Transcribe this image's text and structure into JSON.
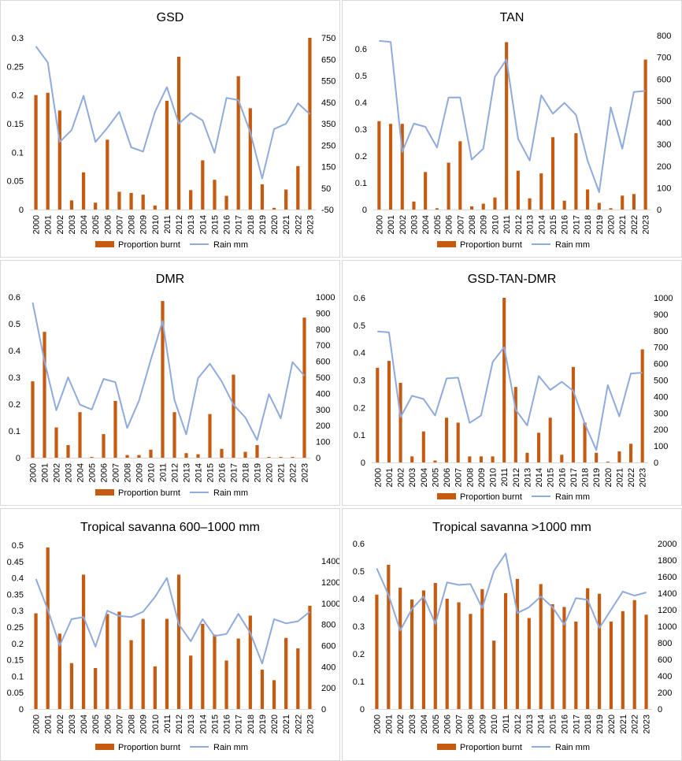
{
  "colors": {
    "bar": "#c55a11",
    "line": "#8faadc"
  },
  "legend": {
    "bar_label": "Proportion burnt",
    "line_label": "Rain mm"
  },
  "chart_data": [
    {
      "type": "bar+line",
      "title": "GSD",
      "categories": [
        "2000",
        "2001",
        "2002",
        "2003",
        "2004",
        "2005",
        "2006",
        "2007",
        "2008",
        "2009",
        "2010",
        "2011",
        "2012",
        "2013",
        "2014",
        "2015",
        "2016",
        "2017",
        "2018",
        "2019",
        "2020",
        "2021",
        "2022",
        "2023"
      ],
      "series": [
        {
          "name": "Proportion burnt",
          "axis": "left",
          "values": [
            0.2,
            0.204,
            0.173,
            0.016,
            0.065,
            0.012,
            0.122,
            0.031,
            0.029,
            0.026,
            0.007,
            0.19,
            0.267,
            0.034,
            0.086,
            0.052,
            0.024,
            0.233,
            0.177,
            0.044,
            0.003,
            0.035,
            0.076,
            0.3
          ]
        },
        {
          "name": "Rain mm",
          "axis": "right",
          "values": [
            710,
            635,
            265,
            320,
            480,
            265,
            330,
            405,
            240,
            220,
            405,
            520,
            350,
            400,
            365,
            215,
            470,
            460,
            310,
            95,
            325,
            350,
            445,
            395
          ]
        }
      ],
      "ylim_left": [
        0,
        0.3
      ],
      "yticks_left": [
        "0",
        "0.05",
        "0.1",
        "0.15",
        "0.2",
        "0.25",
        "0.3"
      ],
      "ylim_right": [
        -50,
        750
      ],
      "yticks_right": [
        "-50",
        "50",
        "150",
        "250",
        "350",
        "450",
        "550",
        "650",
        "750"
      ]
    },
    {
      "type": "bar+line",
      "title": "TAN",
      "categories": [
        "2000",
        "2001",
        "2002",
        "2003",
        "2004",
        "2005",
        "2006",
        "2007",
        "2008",
        "2009",
        "2010",
        "2011",
        "2012",
        "2013",
        "2014",
        "2015",
        "2016",
        "2017",
        "2018",
        "2019",
        "2020",
        "2021",
        "2022",
        "2023"
      ],
      "series": [
        {
          "name": "Proportion burnt",
          "axis": "left",
          "values": [
            0.33,
            0.32,
            0.32,
            0.03,
            0.14,
            0.005,
            0.175,
            0.255,
            0.012,
            0.022,
            0.045,
            0.625,
            0.145,
            0.042,
            0.135,
            0.27,
            0.033,
            0.285,
            0.075,
            0.025,
            0.005,
            0.052,
            0.058,
            0.56
          ]
        },
        {
          "name": "Rain mm",
          "axis": "right",
          "values": [
            775,
            770,
            265,
            395,
            380,
            285,
            515,
            515,
            230,
            280,
            610,
            690,
            325,
            225,
            525,
            440,
            490,
            435,
            225,
            80,
            470,
            280,
            540,
            545
          ]
        }
      ],
      "ylim_left": [
        0,
        0.65
      ],
      "yticks_left": [
        "0",
        "0.1",
        "0.2",
        "0.3",
        "0.4",
        "0.5",
        "0.6"
      ],
      "ylim_right": [
        0,
        800
      ],
      "yticks_right": [
        "0",
        "100",
        "200",
        "300",
        "400",
        "500",
        "600",
        "700",
        "800"
      ]
    },
    {
      "type": "bar+line",
      "title": "DMR",
      "categories": [
        "2000",
        "2001",
        "2002",
        "2003",
        "2004",
        "2005",
        "2006",
        "2007",
        "2008",
        "2009",
        "2010",
        "2011",
        "2012",
        "2013",
        "2014",
        "2015",
        "2016",
        "2017",
        "2018",
        "2019",
        "2020",
        "2021",
        "2022",
        "2023"
      ],
      "series": [
        {
          "name": "Proportion burnt",
          "axis": "left",
          "values": [
            0.285,
            0.47,
            0.113,
            0.047,
            0.17,
            0.003,
            0.088,
            0.212,
            0.01,
            0.01,
            0.03,
            0.585,
            0.17,
            0.017,
            0.013,
            0.163,
            0.033,
            0.31,
            0.022,
            0.047,
            0.003,
            0.003,
            0.003,
            0.523
          ]
        },
        {
          "name": "Rain mm",
          "axis": "right",
          "values": [
            965,
            600,
            295,
            500,
            330,
            300,
            490,
            470,
            185,
            355,
            610,
            850,
            360,
            145,
            495,
            585,
            475,
            330,
            250,
            110,
            395,
            245,
            595,
            510
          ]
        }
      ],
      "ylim_left": [
        0,
        0.6
      ],
      "yticks_left": [
        "0",
        "0.1",
        "0.2",
        "0.3",
        "0.4",
        "0.5",
        "0.6"
      ],
      "ylim_right": [
        0,
        1000
      ],
      "yticks_right": [
        "0",
        "100",
        "200",
        "300",
        "400",
        "500",
        "600",
        "700",
        "800",
        "900",
        "1000"
      ]
    },
    {
      "type": "bar+line",
      "title": "GSD-TAN-DMR",
      "categories": [
        "2000",
        "2001",
        "2002",
        "2003",
        "2004",
        "2005",
        "2006",
        "2007",
        "2008",
        "2009",
        "2010",
        "2011",
        "2012",
        "2013",
        "2014",
        "2015",
        "2016",
        "2017",
        "2018",
        "2019",
        "2020",
        "2021",
        "2022",
        "2023"
      ],
      "series": [
        {
          "name": "Proportion burnt",
          "axis": "left",
          "values": [
            0.345,
            0.37,
            0.29,
            0.022,
            0.113,
            0.007,
            0.163,
            0.145,
            0.022,
            0.022,
            0.022,
            0.6,
            0.275,
            0.035,
            0.108,
            0.163,
            0.028,
            0.348,
            0.145,
            0.035,
            0.003,
            0.04,
            0.068,
            0.412
          ]
        },
        {
          "name": "Rain mm",
          "axis": "right",
          "values": [
            795,
            790,
            275,
            405,
            385,
            285,
            510,
            515,
            240,
            285,
            610,
            700,
            320,
            225,
            525,
            440,
            490,
            435,
            235,
            75,
            470,
            280,
            540,
            545
          ]
        }
      ],
      "ylim_left": [
        0,
        0.6
      ],
      "yticks_left": [
        "0",
        "0.1",
        "0.2",
        "0.3",
        "0.4",
        "0.5",
        "0.6"
      ],
      "ylim_right": [
        0,
        1000
      ],
      "yticks_right": [
        "0",
        "100",
        "200",
        "300",
        "400",
        "500",
        "600",
        "700",
        "800",
        "900",
        "1000"
      ]
    },
    {
      "type": "bar+line",
      "title": "Tropical savanna 600–1000 mm",
      "categories": [
        "2000",
        "2001",
        "2002",
        "2003",
        "2004",
        "2005",
        "2006",
        "2007",
        "2008",
        "2009",
        "2010",
        "2011",
        "2012",
        "2013",
        "2014",
        "2015",
        "2016",
        "2017",
        "2018",
        "2019",
        "2020",
        "2021",
        "2022",
        "2023"
      ],
      "series": [
        {
          "name": "Proportion burnt",
          "axis": "left",
          "values": [
            0.292,
            0.493,
            0.23,
            0.14,
            0.41,
            0.125,
            0.29,
            0.297,
            0.21,
            0.275,
            0.13,
            0.275,
            0.41,
            0.163,
            0.26,
            0.227,
            0.148,
            0.215,
            0.285,
            0.12,
            0.088,
            0.217,
            0.185,
            0.315
          ]
        },
        {
          "name": "Rain mm",
          "axis": "right",
          "values": [
            1230,
            940,
            600,
            850,
            870,
            590,
            930,
            880,
            870,
            920,
            1060,
            1240,
            800,
            640,
            850,
            690,
            710,
            900,
            720,
            430,
            850,
            810,
            830,
            920
          ]
        }
      ],
      "ylim_left": [
        0,
        0.5
      ],
      "yticks_left": [
        "0",
        "0.05",
        "0.1",
        "0.15",
        "0.2",
        "0.25",
        "0.3",
        "0.35",
        "0.4",
        "0.45",
        "0.5"
      ],
      "ylim_right": [
        0,
        1550
      ],
      "yticks_right": [
        "0",
        "200",
        "400",
        "600",
        "800",
        "1000",
        "1200",
        "1400"
      ]
    },
    {
      "type": "bar+line",
      "title": "Tropical savanna >1000 mm",
      "categories": [
        "2000",
        "2001",
        "2002",
        "2003",
        "2004",
        "2005",
        "2006",
        "2007",
        "2008",
        "2009",
        "2010",
        "2011",
        "2012",
        "2013",
        "2014",
        "2015",
        "2016",
        "2017",
        "2018",
        "2019",
        "2020",
        "2021",
        "2022",
        "2023"
      ],
      "series": [
        {
          "name": "Proportion burnt",
          "axis": "left",
          "values": [
            0.415,
            0.523,
            0.44,
            0.397,
            0.43,
            0.457,
            0.4,
            0.387,
            0.345,
            0.435,
            0.248,
            0.42,
            0.472,
            0.33,
            0.453,
            0.38,
            0.37,
            0.317,
            0.438,
            0.418,
            0.317,
            0.355,
            0.395,
            0.342
          ]
        },
        {
          "name": "Rain mm",
          "axis": "right",
          "values": [
            1700,
            1380,
            950,
            1210,
            1360,
            1030,
            1530,
            1500,
            1510,
            1220,
            1670,
            1880,
            1160,
            1230,
            1360,
            1230,
            1020,
            1340,
            1320,
            980,
            1200,
            1420,
            1370,
            1410
          ]
        }
      ],
      "ylim_left": [
        0,
        0.6
      ],
      "yticks_left": [
        "0",
        "0.1",
        "0.2",
        "0.3",
        "0.4",
        "0.5",
        "0.6"
      ],
      "ylim_right": [
        0,
        2000
      ],
      "yticks_right": [
        "0",
        "200",
        "400",
        "600",
        "800",
        "1000",
        "1200",
        "1400",
        "1600",
        "1800",
        "2000"
      ]
    }
  ]
}
